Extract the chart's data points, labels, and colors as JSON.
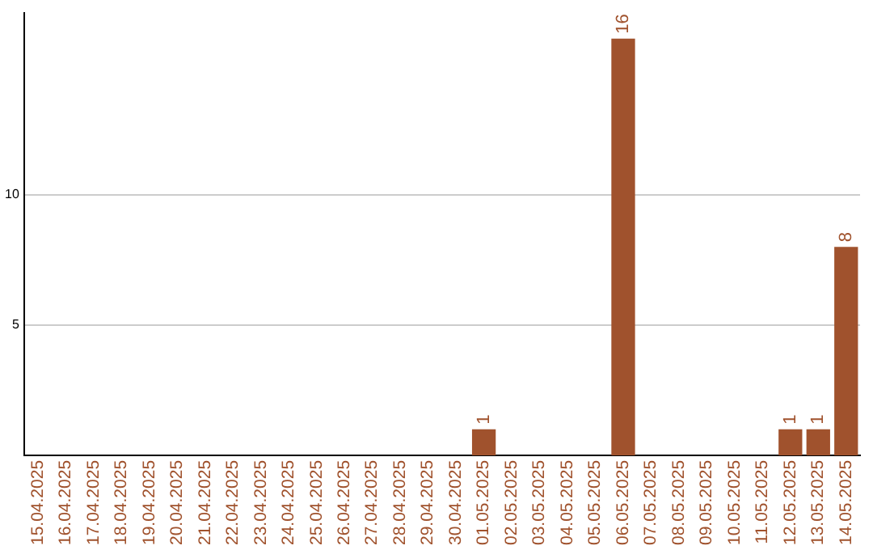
{
  "chart_data": {
    "type": "bar",
    "categories": [
      "15.04.2025",
      "16.04.2025",
      "17.04.2025",
      "18.04.2025",
      "19.04.2025",
      "20.04.2025",
      "21.04.2025",
      "22.04.2025",
      "23.04.2025",
      "24.04.2025",
      "25.04.2025",
      "26.04.2025",
      "27.04.2025",
      "28.04.2025",
      "29.04.2025",
      "30.04.2025",
      "01.05.2025",
      "02.05.2025",
      "03.05.2025",
      "04.05.2025",
      "05.05.2025",
      "06.05.2025",
      "07.05.2025",
      "08.05.2025",
      "09.05.2025",
      "10.05.2025",
      "11.05.2025",
      "12.05.2025",
      "13.05.2025",
      "14.05.2025"
    ],
    "values": [
      0,
      0,
      0,
      0,
      0,
      0,
      0,
      0,
      0,
      0,
      0,
      0,
      0,
      0,
      0,
      0,
      1,
      0,
      0,
      0,
      0,
      16,
      0,
      0,
      0,
      0,
      0,
      1,
      1,
      8
    ],
    "value_labels": [
      null,
      null,
      null,
      null,
      null,
      null,
      null,
      null,
      null,
      null,
      null,
      null,
      null,
      null,
      null,
      null,
      "1",
      null,
      null,
      null,
      null,
      "16",
      null,
      null,
      null,
      null,
      null,
      "1",
      "1",
      "8"
    ],
    "color": "#a0522d",
    "ylim": [
      0,
      17
    ],
    "yticks": [
      5,
      10
    ],
    "grid": "y",
    "legend": false
  }
}
